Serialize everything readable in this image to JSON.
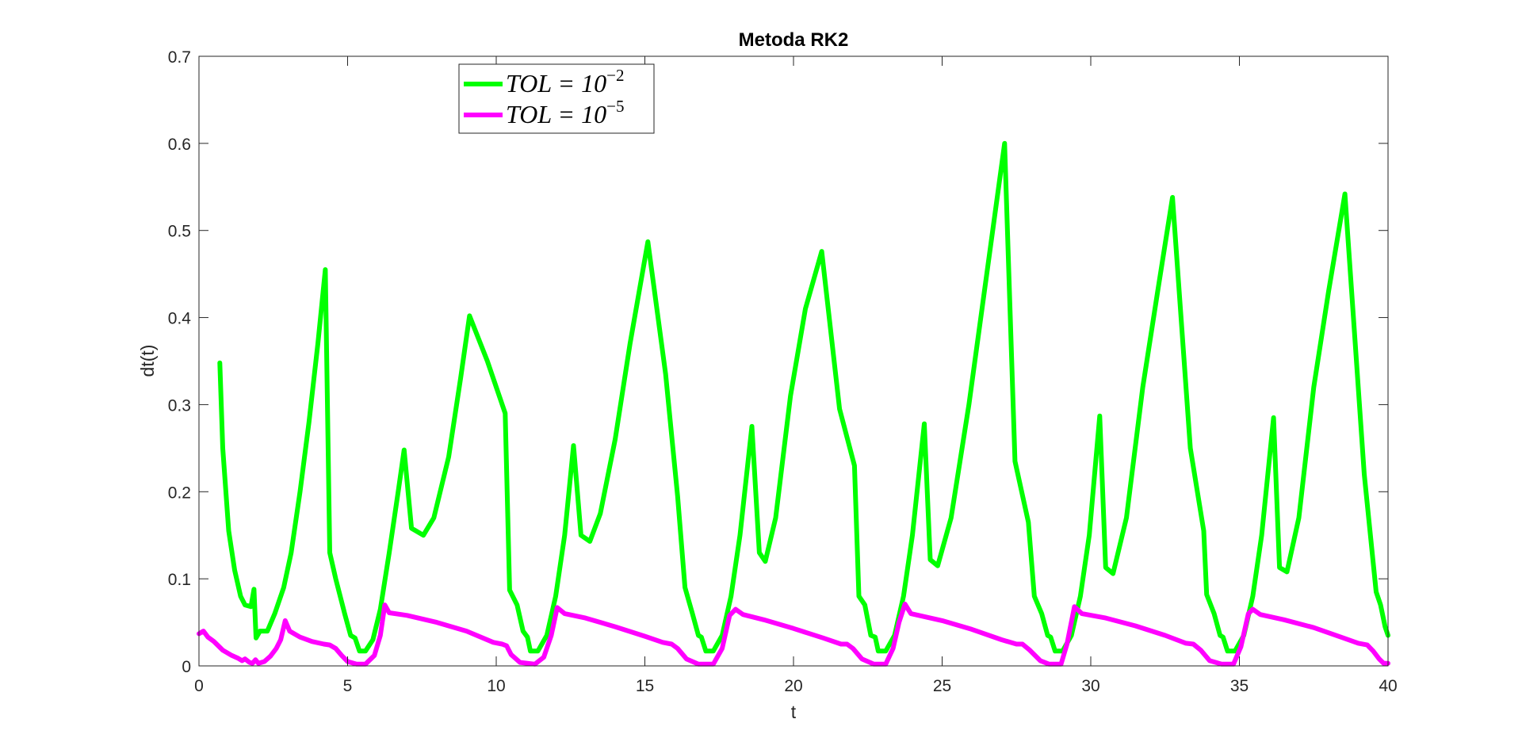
{
  "chart_data": {
    "type": "line",
    "title": "Metoda RK2",
    "xlabel": "t",
    "ylabel": "dt(t)",
    "xlim": [
      0,
      40
    ],
    "ylim": [
      0,
      0.7
    ],
    "xticks": [
      0,
      5,
      10,
      15,
      20,
      25,
      30,
      35,
      40
    ],
    "yticks": [
      0,
      0.1,
      0.2,
      0.3,
      0.4,
      0.5,
      0.6,
      0.7
    ],
    "xtick_labels": [
      "0",
      "5",
      "10",
      "15",
      "20",
      "25",
      "30",
      "35",
      "40"
    ],
    "ytick_labels": [
      "0",
      "0.1",
      "0.2",
      "0.3",
      "0.4",
      "0.5",
      "0.6",
      "0.7"
    ],
    "grid": false,
    "legend_position": "top-left",
    "series": [
      {
        "name": "TOL = 10^{-2}",
        "legend_base": "TOL = 10",
        "legend_exp": "−2",
        "color": "#00ff00",
        "points": [
          [
            0.7,
            0.348
          ],
          [
            0.8,
            0.25
          ],
          [
            1.0,
            0.155
          ],
          [
            1.2,
            0.11
          ],
          [
            1.4,
            0.08
          ],
          [
            1.55,
            0.07
          ],
          [
            1.75,
            0.068
          ],
          [
            1.85,
            0.088
          ],
          [
            1.92,
            0.032
          ],
          [
            2.05,
            0.04
          ],
          [
            2.3,
            0.04
          ],
          [
            2.55,
            0.06
          ],
          [
            2.85,
            0.09
          ],
          [
            3.1,
            0.13
          ],
          [
            3.4,
            0.2
          ],
          [
            3.7,
            0.28
          ],
          [
            4.0,
            0.37
          ],
          [
            4.25,
            0.455
          ],
          [
            4.4,
            0.13
          ],
          [
            4.6,
            0.1
          ],
          [
            4.9,
            0.06
          ],
          [
            5.1,
            0.035
          ],
          [
            5.25,
            0.032
          ],
          [
            5.4,
            0.017
          ],
          [
            5.6,
            0.017
          ],
          [
            5.85,
            0.03
          ],
          [
            6.1,
            0.065
          ],
          [
            6.4,
            0.13
          ],
          [
            6.7,
            0.2
          ],
          [
            6.9,
            0.248
          ],
          [
            7.15,
            0.158
          ],
          [
            7.55,
            0.15
          ],
          [
            7.9,
            0.17
          ],
          [
            8.4,
            0.24
          ],
          [
            8.8,
            0.33
          ],
          [
            9.1,
            0.402
          ],
          [
            9.7,
            0.35
          ],
          [
            10.3,
            0.29
          ],
          [
            10.45,
            0.087
          ],
          [
            10.7,
            0.07
          ],
          [
            10.9,
            0.04
          ],
          [
            11.05,
            0.033
          ],
          [
            11.15,
            0.017
          ],
          [
            11.4,
            0.017
          ],
          [
            11.7,
            0.035
          ],
          [
            12.0,
            0.08
          ],
          [
            12.3,
            0.15
          ],
          [
            12.6,
            0.253
          ],
          [
            12.85,
            0.15
          ],
          [
            13.15,
            0.143
          ],
          [
            13.5,
            0.175
          ],
          [
            14.0,
            0.26
          ],
          [
            14.5,
            0.37
          ],
          [
            15.1,
            0.487
          ],
          [
            15.7,
            0.335
          ],
          [
            16.1,
            0.195
          ],
          [
            16.35,
            0.09
          ],
          [
            16.6,
            0.06
          ],
          [
            16.8,
            0.035
          ],
          [
            16.9,
            0.033
          ],
          [
            17.05,
            0.017
          ],
          [
            17.3,
            0.017
          ],
          [
            17.6,
            0.035
          ],
          [
            17.9,
            0.08
          ],
          [
            18.2,
            0.15
          ],
          [
            18.6,
            0.275
          ],
          [
            18.85,
            0.13
          ],
          [
            19.05,
            0.12
          ],
          [
            19.4,
            0.17
          ],
          [
            19.9,
            0.31
          ],
          [
            20.4,
            0.41
          ],
          [
            20.95,
            0.476
          ],
          [
            21.55,
            0.295
          ],
          [
            22.05,
            0.23
          ],
          [
            22.2,
            0.08
          ],
          [
            22.4,
            0.07
          ],
          [
            22.6,
            0.035
          ],
          [
            22.75,
            0.033
          ],
          [
            22.85,
            0.017
          ],
          [
            23.1,
            0.017
          ],
          [
            23.4,
            0.035
          ],
          [
            23.7,
            0.08
          ],
          [
            24.0,
            0.15
          ],
          [
            24.4,
            0.278
          ],
          [
            24.6,
            0.122
          ],
          [
            24.85,
            0.115
          ],
          [
            25.3,
            0.17
          ],
          [
            25.9,
            0.3
          ],
          [
            26.5,
            0.45
          ],
          [
            27.1,
            0.6
          ],
          [
            27.45,
            0.235
          ],
          [
            27.9,
            0.165
          ],
          [
            28.1,
            0.08
          ],
          [
            28.35,
            0.06
          ],
          [
            28.55,
            0.035
          ],
          [
            28.65,
            0.033
          ],
          [
            28.8,
            0.017
          ],
          [
            29.05,
            0.017
          ],
          [
            29.35,
            0.035
          ],
          [
            29.65,
            0.08
          ],
          [
            29.95,
            0.15
          ],
          [
            30.3,
            0.287
          ],
          [
            30.5,
            0.113
          ],
          [
            30.75,
            0.106
          ],
          [
            31.2,
            0.17
          ],
          [
            31.75,
            0.32
          ],
          [
            32.25,
            0.43
          ],
          [
            32.75,
            0.538
          ],
          [
            33.35,
            0.25
          ],
          [
            33.8,
            0.155
          ],
          [
            33.9,
            0.082
          ],
          [
            34.15,
            0.06
          ],
          [
            34.35,
            0.035
          ],
          [
            34.45,
            0.033
          ],
          [
            34.6,
            0.017
          ],
          [
            34.85,
            0.017
          ],
          [
            35.15,
            0.035
          ],
          [
            35.45,
            0.08
          ],
          [
            35.75,
            0.15
          ],
          [
            36.15,
            0.285
          ],
          [
            36.35,
            0.113
          ],
          [
            36.6,
            0.108
          ],
          [
            37.0,
            0.17
          ],
          [
            37.5,
            0.32
          ],
          [
            38.0,
            0.43
          ],
          [
            38.55,
            0.542
          ],
          [
            39.2,
            0.22
          ],
          [
            39.6,
            0.085
          ],
          [
            39.75,
            0.07
          ],
          [
            39.9,
            0.045
          ],
          [
            40.0,
            0.035
          ]
        ]
      },
      {
        "name": "TOL = 10^{-5}",
        "legend_base": "TOL = 10",
        "legend_exp": "−5",
        "color": "#ff00ff",
        "points": [
          [
            0,
            0.037
          ],
          [
            0.15,
            0.04
          ],
          [
            0.3,
            0.033
          ],
          [
            0.5,
            0.028
          ],
          [
            0.8,
            0.018
          ],
          [
            1.1,
            0.012
          ],
          [
            1.3,
            0.009
          ],
          [
            1.45,
            0.006
          ],
          [
            1.55,
            0.008
          ],
          [
            1.7,
            0.004
          ],
          [
            1.8,
            0.003
          ],
          [
            1.9,
            0.007
          ],
          [
            2.0,
            0.003
          ],
          [
            2.2,
            0.005
          ],
          [
            2.4,
            0.011
          ],
          [
            2.6,
            0.02
          ],
          [
            2.75,
            0.03
          ],
          [
            2.9,
            0.052
          ],
          [
            3.05,
            0.04
          ],
          [
            3.4,
            0.033
          ],
          [
            3.8,
            0.028
          ],
          [
            4.2,
            0.025
          ],
          [
            4.4,
            0.024
          ],
          [
            4.6,
            0.02
          ],
          [
            4.8,
            0.012
          ],
          [
            5.0,
            0.005
          ],
          [
            5.3,
            0.002
          ],
          [
            5.6,
            0.002
          ],
          [
            5.9,
            0.012
          ],
          [
            6.1,
            0.035
          ],
          [
            6.25,
            0.07
          ],
          [
            6.4,
            0.061
          ],
          [
            7.0,
            0.058
          ],
          [
            8.0,
            0.05
          ],
          [
            9.0,
            0.04
          ],
          [
            9.9,
            0.027
          ],
          [
            10.2,
            0.025
          ],
          [
            10.35,
            0.023
          ],
          [
            10.5,
            0.013
          ],
          [
            10.8,
            0.004
          ],
          [
            11.3,
            0.002
          ],
          [
            11.6,
            0.01
          ],
          [
            11.85,
            0.035
          ],
          [
            12.05,
            0.067
          ],
          [
            12.3,
            0.06
          ],
          [
            13.0,
            0.055
          ],
          [
            14.0,
            0.045
          ],
          [
            15.0,
            0.034
          ],
          [
            15.6,
            0.027
          ],
          [
            15.9,
            0.025
          ],
          [
            16.1,
            0.02
          ],
          [
            16.4,
            0.008
          ],
          [
            16.8,
            0.002
          ],
          [
            17.3,
            0.002
          ],
          [
            17.6,
            0.02
          ],
          [
            17.85,
            0.058
          ],
          [
            18.05,
            0.065
          ],
          [
            18.3,
            0.059
          ],
          [
            19.0,
            0.053
          ],
          [
            20.0,
            0.043
          ],
          [
            21.0,
            0.032
          ],
          [
            21.6,
            0.025
          ],
          [
            21.8,
            0.025
          ],
          [
            22.0,
            0.02
          ],
          [
            22.3,
            0.008
          ],
          [
            22.7,
            0.002
          ],
          [
            23.1,
            0.002
          ],
          [
            23.35,
            0.02
          ],
          [
            23.55,
            0.05
          ],
          [
            23.75,
            0.071
          ],
          [
            23.95,
            0.06
          ],
          [
            25.0,
            0.052
          ],
          [
            26.0,
            0.042
          ],
          [
            27.0,
            0.03
          ],
          [
            27.5,
            0.025
          ],
          [
            27.7,
            0.025
          ],
          [
            27.95,
            0.018
          ],
          [
            28.3,
            0.006
          ],
          [
            28.6,
            0.002
          ],
          [
            29.0,
            0.002
          ],
          [
            29.2,
            0.025
          ],
          [
            29.45,
            0.068
          ],
          [
            29.7,
            0.06
          ],
          [
            30.5,
            0.055
          ],
          [
            31.5,
            0.046
          ],
          [
            32.5,
            0.035
          ],
          [
            33.2,
            0.026
          ],
          [
            33.45,
            0.025
          ],
          [
            33.7,
            0.018
          ],
          [
            34.0,
            0.006
          ],
          [
            34.4,
            0.002
          ],
          [
            34.8,
            0.002
          ],
          [
            35.05,
            0.022
          ],
          [
            35.3,
            0.06
          ],
          [
            35.45,
            0.065
          ],
          [
            35.7,
            0.059
          ],
          [
            36.5,
            0.053
          ],
          [
            37.5,
            0.044
          ],
          [
            38.5,
            0.032
          ],
          [
            39.0,
            0.026
          ],
          [
            39.3,
            0.024
          ],
          [
            39.5,
            0.017
          ],
          [
            39.7,
            0.008
          ],
          [
            39.85,
            0.003
          ],
          [
            40.0,
            0.003
          ]
        ]
      }
    ]
  }
}
